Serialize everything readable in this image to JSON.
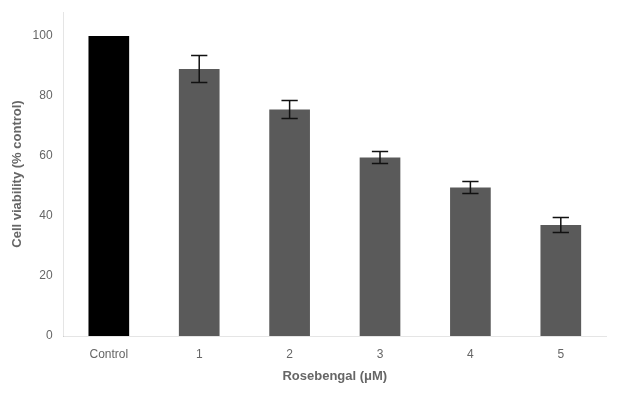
{
  "chart_data": {
    "type": "bar",
    "categories": [
      "Control",
      "1",
      "2",
      "3",
      "4",
      "5"
    ],
    "values": [
      100,
      89,
      75.5,
      59.5,
      49.5,
      37
    ],
    "errors": [
      0,
      4.5,
      3,
      2,
      2,
      2.5
    ],
    "colors": [
      "#000000",
      "#5a5a5a",
      "#5a5a5a",
      "#5a5a5a",
      "#5a5a5a",
      "#5a5a5a"
    ],
    "xlabel": "Rosebengal (μM)",
    "ylabel": "Cell viability (% control)",
    "ylim": [
      0,
      108
    ],
    "yticks": [
      0,
      20,
      40,
      60,
      80,
      100
    ],
    "grid": false
  }
}
